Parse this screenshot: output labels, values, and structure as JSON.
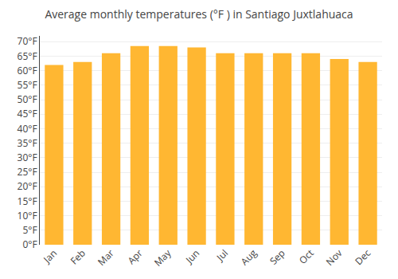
{
  "chart_data": {
    "type": "bar",
    "title": "Average monthly temperatures (°F ) in Santiago Juxtlahuaca",
    "categories": [
      "Jan",
      "Feb",
      "Mar",
      "Apr",
      "May",
      "Jun",
      "Jul",
      "Aug",
      "Sep",
      "Oct",
      "Nov",
      "Dec"
    ],
    "values": [
      62,
      63,
      66,
      68.5,
      68.5,
      68,
      66,
      66,
      66,
      66,
      64,
      63
    ],
    "color": "#FFB732",
    "ylim": [
      0,
      72
    ],
    "yticks": [
      {
        "value": 0,
        "label": "0°F"
      },
      {
        "value": 5,
        "label": "5°F"
      },
      {
        "value": 10,
        "label": "10°F"
      },
      {
        "value": 15,
        "label": "15°F"
      },
      {
        "value": 20,
        "label": "20°F"
      },
      {
        "value": 25,
        "label": "25°F"
      },
      {
        "value": 30,
        "label": "30°F"
      },
      {
        "value": 35,
        "label": "35°F"
      },
      {
        "value": 40,
        "label": "40°F"
      },
      {
        "value": 45,
        "label": "45°F"
      },
      {
        "value": 50,
        "label": "50°F"
      },
      {
        "value": 55,
        "label": "55°F"
      },
      {
        "value": 60,
        "label": "60°F"
      },
      {
        "value": 65,
        "label": "65°F"
      },
      {
        "value": 70,
        "label": "70°F"
      }
    ],
    "grid": true
  }
}
